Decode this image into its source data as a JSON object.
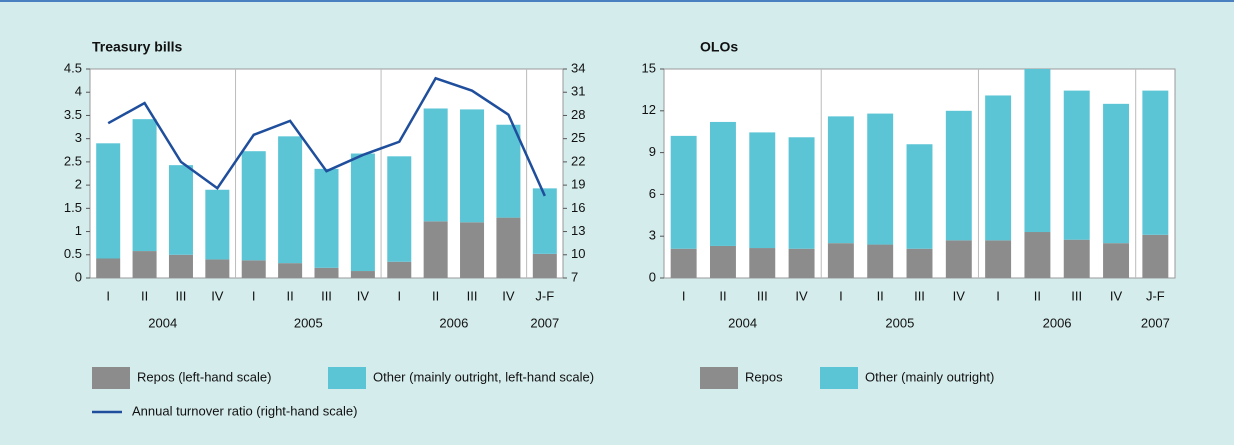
{
  "chart_data": [
    {
      "type": "bar",
      "stacked": true,
      "title": "Treasury bills",
      "categories": [
        "I",
        "II",
        "III",
        "IV",
        "I",
        "II",
        "III",
        "IV",
        "I",
        "II",
        "III",
        "IV",
        "J-F"
      ],
      "years": [
        "2004",
        "2004",
        "2004",
        "2004",
        "2005",
        "2005",
        "2005",
        "2005",
        "2006",
        "2006",
        "2006",
        "2006",
        "2007"
      ],
      "series": [
        {
          "name": "Repos (left-hand scale)",
          "color": "#8c8c8c",
          "values": [
            0.42,
            0.58,
            0.5,
            0.4,
            0.38,
            0.32,
            0.22,
            0.15,
            0.35,
            1.22,
            1.2,
            1.3,
            0.52
          ]
        },
        {
          "name": "Other (mainly outright, left-hand scale)",
          "color": "#5bc5d6",
          "values": [
            2.48,
            2.84,
            1.93,
            1.5,
            2.35,
            2.73,
            2.13,
            2.53,
            2.27,
            2.43,
            2.43,
            2.0,
            1.41
          ]
        },
        {
          "name": "Annual turnover ratio (right-hand scale)",
          "color": "#1f4e9c",
          "axis": "y2",
          "values": [
            27.0,
            29.6,
            22.0,
            18.6,
            25.5,
            27.3,
            20.8,
            22.9,
            24.6,
            32.8,
            31.2,
            28.1,
            17.6
          ]
        }
      ],
      "ylim": [
        0,
        4.5
      ],
      "yticks": [
        0,
        0.5,
        1,
        1.5,
        2,
        2.5,
        3,
        3.5,
        4,
        4.5
      ],
      "y2lim": [
        7,
        34
      ],
      "y2ticks": [
        7,
        10,
        13,
        16,
        19,
        22,
        25,
        28,
        31,
        34
      ]
    },
    {
      "type": "bar",
      "stacked": true,
      "title": "OLOs",
      "categories": [
        "I",
        "II",
        "III",
        "IV",
        "I",
        "II",
        "III",
        "IV",
        "I",
        "II",
        "III",
        "IV",
        "J-F"
      ],
      "years": [
        "2004",
        "2004",
        "2004",
        "2004",
        "2005",
        "2005",
        "2005",
        "2005",
        "2006",
        "2006",
        "2006",
        "2006",
        "2007"
      ],
      "series": [
        {
          "name": "Repos",
          "color": "#8c8c8c",
          "values": [
            2.1,
            2.3,
            2.15,
            2.1,
            2.5,
            2.4,
            2.1,
            2.7,
            2.7,
            3.3,
            2.75,
            2.5,
            3.1
          ]
        },
        {
          "name": "Other (mainly outright)",
          "color": "#5bc5d6",
          "values": [
            8.1,
            8.9,
            8.3,
            8.0,
            9.1,
            9.4,
            7.5,
            9.3,
            10.4,
            11.7,
            10.7,
            10.0,
            10.35
          ]
        }
      ],
      "ylim": [
        0,
        15
      ],
      "yticks": [
        0,
        3,
        6,
        9,
        12,
        15
      ]
    }
  ]
}
